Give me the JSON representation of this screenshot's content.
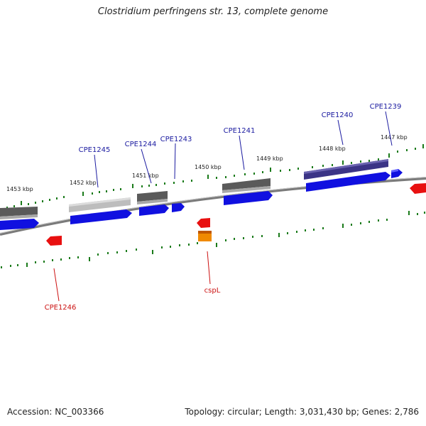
{
  "title": "Clostridium perfringens str. 13, complete genome",
  "footer": {
    "accession": "Accession: NC_003366",
    "summary": "Topology: circular; Length: 3,031,430 bp; Genes: 2,786"
  },
  "colors": {
    "backbone": "#7a7a7a",
    "tick": "#1a7a1a",
    "label_forward": "#1a1aa0",
    "label_reverse": "#cc1111",
    "cds_forward": "#1010e0",
    "cds_reverse": "#e81010",
    "gene_gray": "#5a5a5a",
    "gene_light": "#b8b8b8",
    "gene_purple": "#3b3486",
    "gene_orange": "#f08a00"
  },
  "kbp_labels": [
    "1453 kbp",
    "1452 kbp",
    "1451 kbp",
    "1450 kbp",
    "1449 kbp",
    "1448 kbp",
    "1447 kbp"
  ],
  "gene_labels": {
    "forward": [
      "CPE1245",
      "CPE1244",
      "CPE1243",
      "CPE1241",
      "CPE1240",
      "CPE1239"
    ],
    "reverse": [
      "CPE1246",
      "cspL"
    ]
  }
}
